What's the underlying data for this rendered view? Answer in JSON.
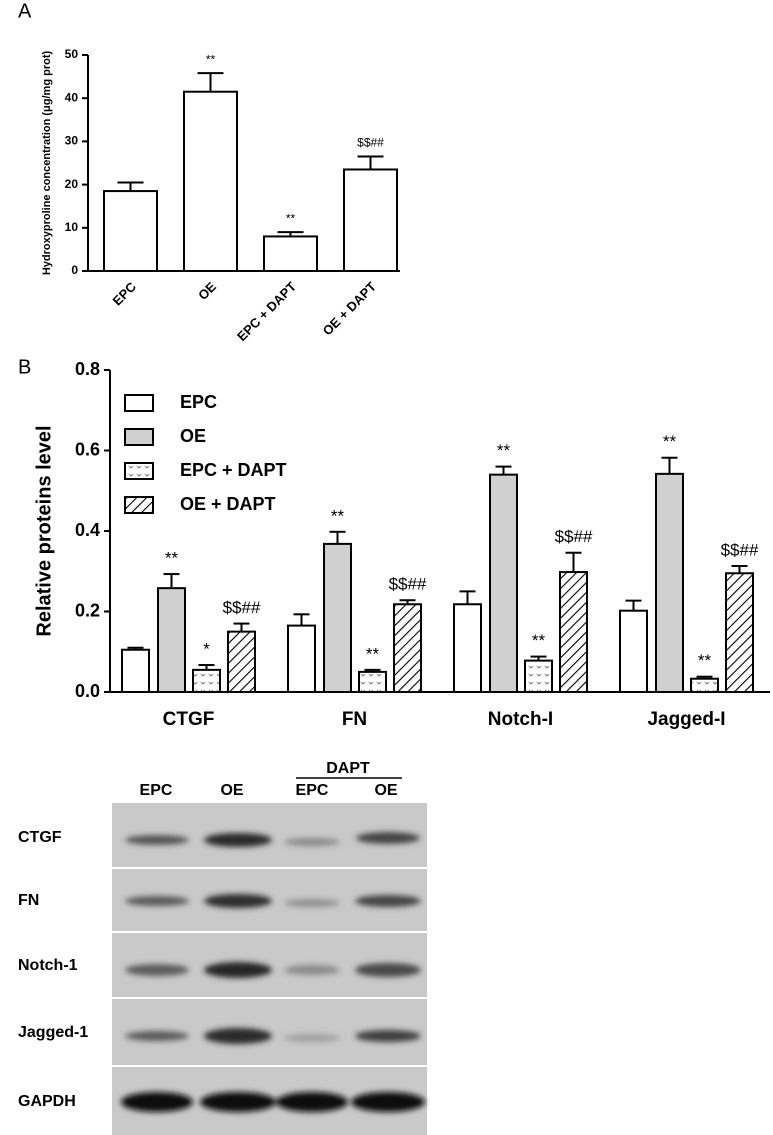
{
  "chart_data": [
    {
      "type": "bar",
      "panel": "A",
      "ylabel": "Hydroxyproline concentration (μg/mg prot)",
      "categories": [
        "EPC",
        "OE",
        "EPC + DAPT",
        "OE + DAPT"
      ],
      "values": [
        18.5,
        41.5,
        8,
        23.5
      ],
      "errors": [
        2,
        4.3,
        1,
        3
      ],
      "annotations": [
        null,
        "**",
        "**",
        "$$##"
      ],
      "color": "#ffffff",
      "ylim": [
        0,
        50
      ],
      "yticks": [
        0,
        10,
        20,
        30,
        40,
        50
      ]
    },
    {
      "type": "bar",
      "panel": "B",
      "ylabel": "Relative proteins level",
      "categories": [
        "CTGF",
        "FN",
        "Notch-I",
        "Jagged-I"
      ],
      "series": [
        {
          "name": "EPC",
          "color": "#ffffff",
          "pattern": "none",
          "values": [
            0.105,
            0.165,
            0.218,
            0.202
          ],
          "errors": [
            0.005,
            0.028,
            0.032,
            0.025
          ],
          "annotations": [
            null,
            null,
            null,
            null
          ]
        },
        {
          "name": "OE",
          "color": "#d0d0d0",
          "pattern": "none",
          "values": [
            0.258,
            0.368,
            0.54,
            0.542
          ],
          "errors": [
            0.035,
            0.03,
            0.02,
            0.04
          ],
          "annotations": [
            "**",
            "**",
            "**",
            "**"
          ]
        },
        {
          "name": "EPC + DAPT",
          "color": "#ffffff",
          "pattern": "dots",
          "values": [
            0.055,
            0.05,
            0.078,
            0.033
          ],
          "errors": [
            0.012,
            0.005,
            0.01,
            0.005
          ],
          "annotations": [
            "*",
            "**",
            "**",
            "**"
          ]
        },
        {
          "name": "OE + DAPT",
          "color": "#ffffff",
          "pattern": "hatch",
          "values": [
            0.15,
            0.218,
            0.298,
            0.295
          ],
          "errors": [
            0.02,
            0.01,
            0.048,
            0.018
          ],
          "annotations": [
            "$$##",
            "$$##",
            "$$##",
            "$$##"
          ]
        }
      ],
      "legend": "upper left",
      "ylim": [
        0,
        0.8
      ],
      "yticks": [
        {
          "value": 0,
          "label": "0.0"
        },
        0.2,
        0.4,
        0.6,
        0.8
      ]
    }
  ],
  "blot": {
    "column_labels": [
      "EPC",
      "OE",
      "EPC",
      "OE"
    ],
    "group_label": "DAPT",
    "row_labels": [
      "CTGF",
      "FN",
      "Notch-1",
      "Jagged-1",
      "GAPDH"
    ]
  }
}
